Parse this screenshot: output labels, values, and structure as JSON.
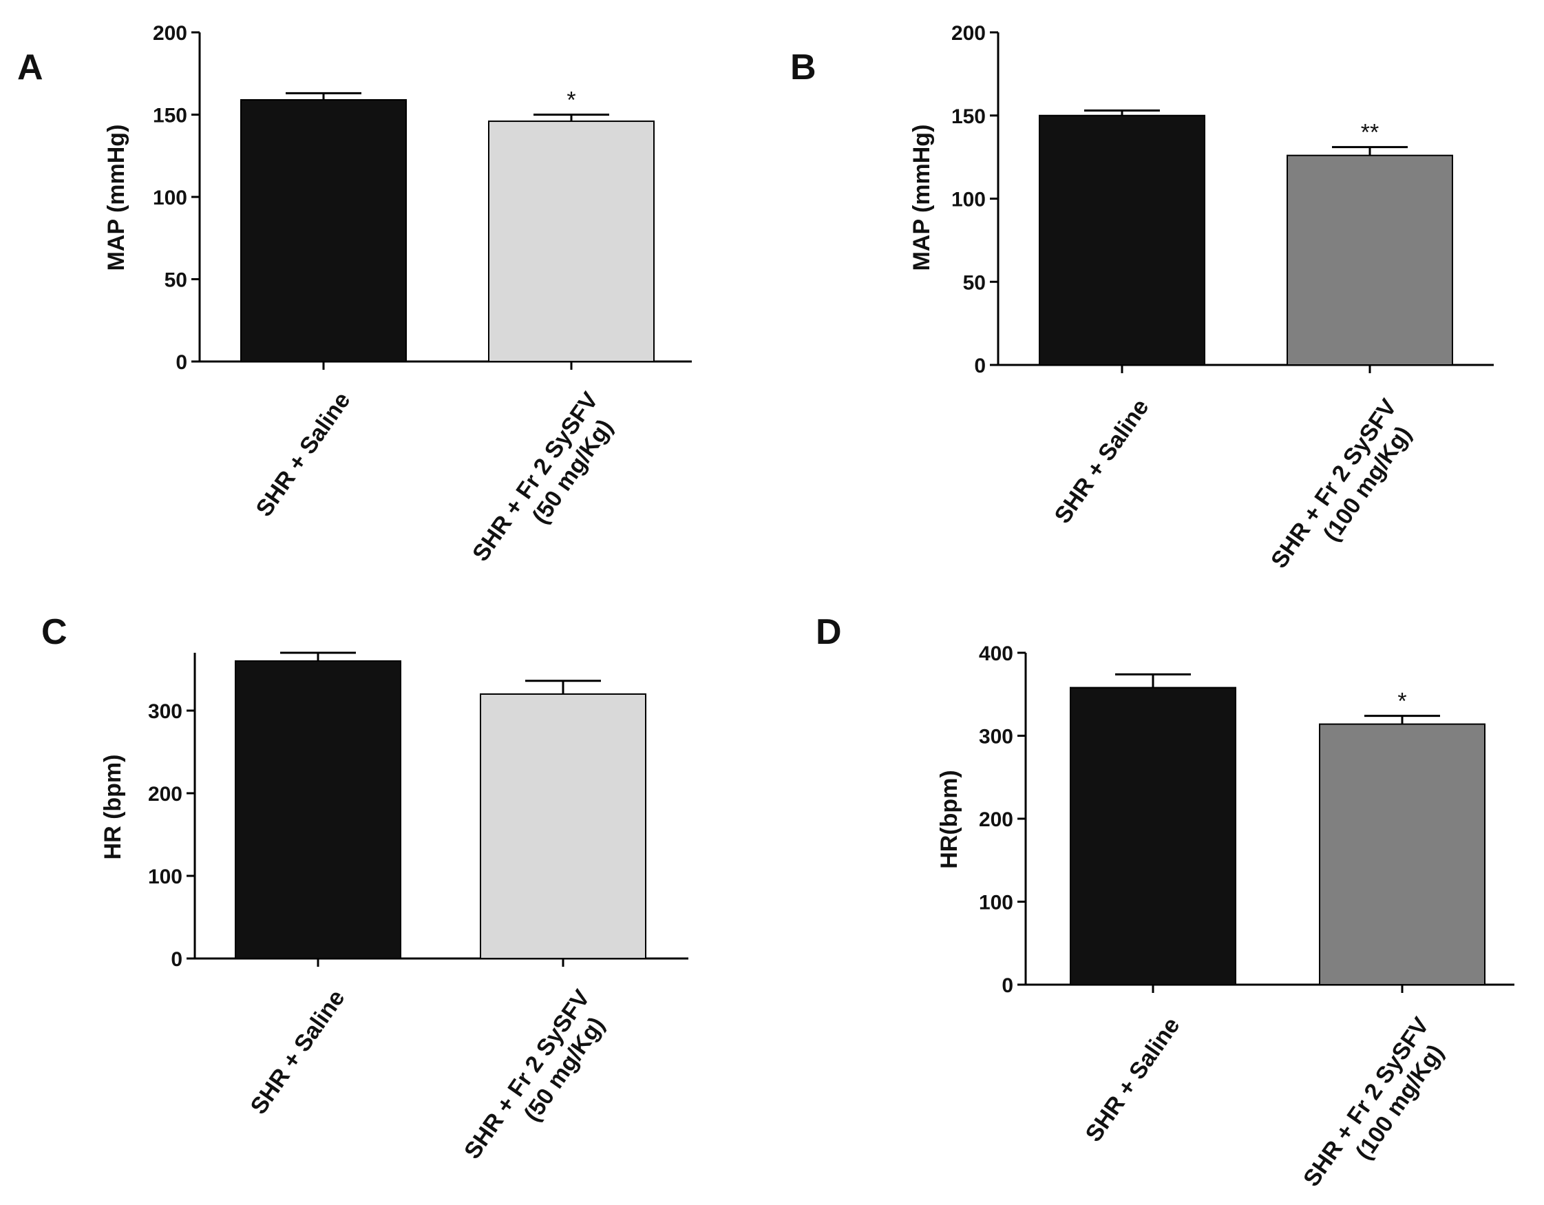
{
  "figure": {
    "background": "#ffffff",
    "axis_color": "#000000"
  },
  "chart_data": [
    {
      "panel": "A",
      "type": "bar",
      "ylabel": "MAP (mmHg)",
      "ylim": [
        0,
        200
      ],
      "yticks": [
        0,
        50,
        100,
        150,
        200
      ],
      "categories": [
        [
          "SHR + Saline"
        ],
        [
          "SHR + Fr 2 SySFV",
          "(50 mg/Kg)"
        ]
      ],
      "values": [
        159,
        146
      ],
      "errors": [
        4,
        4
      ],
      "significance": [
        "",
        "*"
      ],
      "colors": [
        "#111111",
        "#d9d9d9"
      ]
    },
    {
      "panel": "B",
      "type": "bar",
      "ylabel": "MAP (mmHg)",
      "ylim": [
        0,
        200
      ],
      "yticks": [
        0,
        50,
        100,
        150,
        200
      ],
      "categories": [
        [
          "SHR + Saline"
        ],
        [
          "SHR + Fr 2 SySFV",
          "(100 mg/Kg)"
        ]
      ],
      "values": [
        150,
        126
      ],
      "errors": [
        3,
        5
      ],
      "significance": [
        "",
        "**"
      ],
      "colors": [
        "#111111",
        "#808080"
      ]
    },
    {
      "panel": "C",
      "type": "bar",
      "ylabel": "HR (bpm)",
      "ylim": [
        0,
        370
      ],
      "yticks": [
        0,
        100,
        200,
        300
      ],
      "categories": [
        [
          "SHR + Saline"
        ],
        [
          "SHR + Fr 2 SySFV",
          "(50 mg/Kg)"
        ]
      ],
      "values": [
        360,
        320
      ],
      "errors": [
        10,
        16
      ],
      "significance": [
        "",
        ""
      ],
      "colors": [
        "#111111",
        "#d9d9d9"
      ]
    },
    {
      "panel": "D",
      "type": "bar",
      "ylabel": "HR(bpm)",
      "ylim": [
        0,
        400
      ],
      "yticks": [
        0,
        100,
        200,
        300,
        400
      ],
      "categories": [
        [
          "SHR + Saline"
        ],
        [
          "SHR + Fr 2 SySFV",
          "(100 mg/Kg)"
        ]
      ],
      "values": [
        358,
        314
      ],
      "errors": [
        16,
        10
      ],
      "significance": [
        "",
        "*"
      ],
      "colors": [
        "#111111",
        "#808080"
      ]
    }
  ]
}
